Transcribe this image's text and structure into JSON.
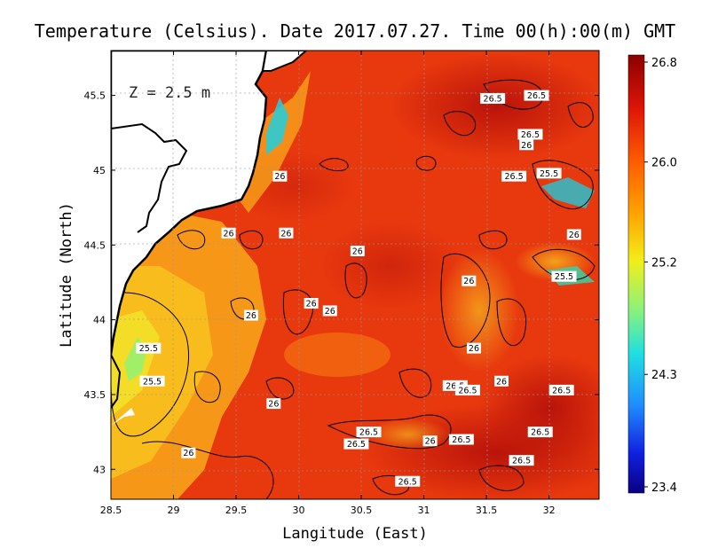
{
  "title": "Temperature (Celsius). Date 2017.07.27. Time 00(h):00(m) GMT",
  "depth_label": "Z = 2.5 m",
  "xlabel": "Langitude (East)",
  "ylabel": "Latitude (North)",
  "colors": {
    "sea_warm": "#e8340c",
    "sea_hot": "#c8140a",
    "sea_mid": "#f77b10",
    "sea_cool": "#f9c21f",
    "sea_cold": "#3fd0b8",
    "land": "#ffffff",
    "coast": "#000000"
  },
  "chart_data": {
    "type": "heatmap",
    "title": "Temperature (Celsius). Date 2017.07.27. Time 00(h):00(m) GMT",
    "xlabel": "Langitude (East)",
    "ylabel": "Latitude (North)",
    "xlim": [
      28.5,
      32.4
    ],
    "ylim": [
      42.8,
      45.8
    ],
    "x_ticks": [
      "28.5",
      "29",
      "29.5",
      "30",
      "30.5",
      "31",
      "31.5",
      "32"
    ],
    "y_ticks": [
      "43",
      "43.5",
      "44",
      "44.5",
      "45",
      "45.5"
    ],
    "grid": true,
    "colorbar": {
      "min": 23.4,
      "max": 26.8,
      "ticks": [
        "26.8",
        "26.0",
        "25.2",
        "24.3",
        "23.4"
      ],
      "colormap": "jet"
    },
    "contour_labels": [
      {
        "text": "26.5",
        "lon": 31.55,
        "lat": 45.48
      },
      {
        "text": "26.5",
        "lon": 31.9,
        "lat": 45.5
      },
      {
        "text": "26.5",
        "lon": 31.85,
        "lat": 45.24
      },
      {
        "text": "26",
        "lon": 31.82,
        "lat": 45.17
      },
      {
        "text": "26.5",
        "lon": 31.72,
        "lat": 44.96
      },
      {
        "text": "25.5",
        "lon": 32.0,
        "lat": 44.98
      },
      {
        "text": "26",
        "lon": 29.85,
        "lat": 44.96
      },
      {
        "text": "26",
        "lon": 29.9,
        "lat": 44.58
      },
      {
        "text": "26",
        "lon": 32.2,
        "lat": 44.57
      },
      {
        "text": "26",
        "lon": 29.44,
        "lat": 44.58
      },
      {
        "text": "26",
        "lon": 30.47,
        "lat": 44.46
      },
      {
        "text": "25.5",
        "lon": 32.12,
        "lat": 44.29
      },
      {
        "text": "26",
        "lon": 31.36,
        "lat": 44.26
      },
      {
        "text": "26",
        "lon": 30.1,
        "lat": 44.11
      },
      {
        "text": "26",
        "lon": 30.25,
        "lat": 44.06
      },
      {
        "text": "26",
        "lon": 29.62,
        "lat": 44.03
      },
      {
        "text": "25.5",
        "lon": 28.8,
        "lat": 43.81
      },
      {
        "text": "26",
        "lon": 31.4,
        "lat": 43.81
      },
      {
        "text": "25.5",
        "lon": 28.83,
        "lat": 43.59
      },
      {
        "text": "26",
        "lon": 31.62,
        "lat": 43.59
      },
      {
        "text": "26.5",
        "lon": 31.25,
        "lat": 43.56
      },
      {
        "text": "26.5",
        "lon": 31.35,
        "lat": 43.53
      },
      {
        "text": "26.5",
        "lon": 32.1,
        "lat": 43.53
      },
      {
        "text": "26",
        "lon": 29.8,
        "lat": 43.44
      },
      {
        "text": "26.5",
        "lon": 30.56,
        "lat": 43.25
      },
      {
        "text": "26.5",
        "lon": 31.93,
        "lat": 43.25
      },
      {
        "text": "26",
        "lon": 31.05,
        "lat": 43.19
      },
      {
        "text": "26.5",
        "lon": 31.3,
        "lat": 43.2
      },
      {
        "text": "26.5",
        "lon": 30.46,
        "lat": 43.17
      },
      {
        "text": "26",
        "lon": 29.12,
        "lat": 43.11
      },
      {
        "text": "26.5",
        "lon": 31.78,
        "lat": 43.06
      },
      {
        "text": "26.5",
        "lon": 30.87,
        "lat": 42.92
      }
    ]
  }
}
